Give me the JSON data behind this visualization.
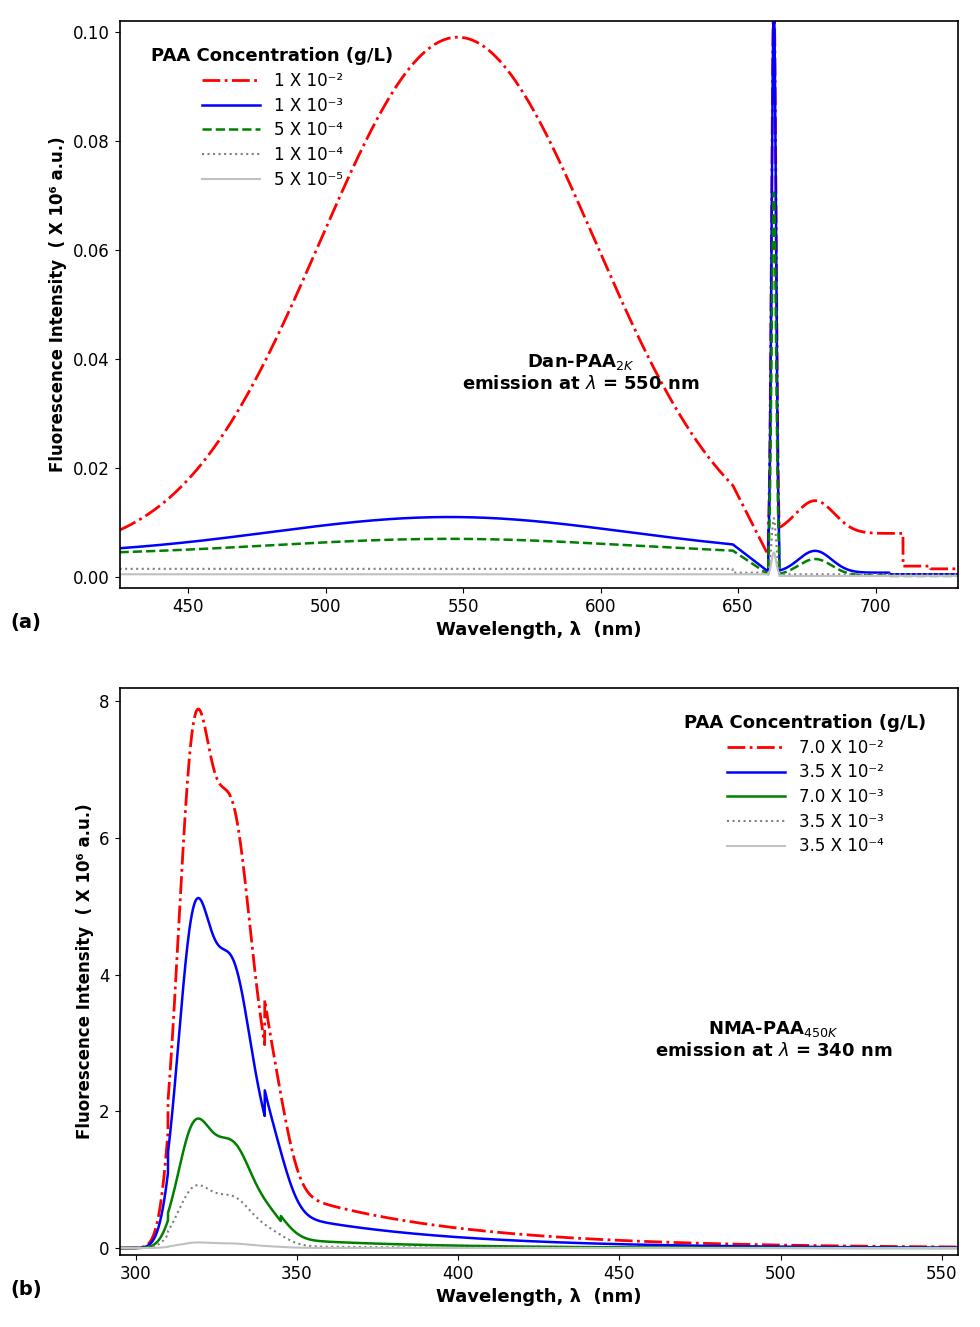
{
  "panel_a": {
    "title": "PAA Concentration (g/L)",
    "annotation_line1": "Dan-PAA",
    "annotation_sub": "2K",
    "annotation_line2": "emission at λ = 550 nm",
    "xlabel": "Wavelength, λ  (nm)",
    "ylabel": "Fluorescence Intensity  ( X 10⁶ a.u.)",
    "xlim": [
      425,
      730
    ],
    "ylim": [
      -0.002,
      0.102
    ],
    "yticks": [
      0.0,
      0.02,
      0.04,
      0.06,
      0.08,
      0.1
    ],
    "xticks": [
      450,
      500,
      550,
      600,
      650,
      700
    ],
    "legend_labels": [
      "1 X 10⁻²",
      "1 X 10⁻³",
      "5 X 10⁻⁴",
      "1 X 10⁻⁴",
      "5 X 10⁻⁵"
    ]
  },
  "panel_b": {
    "title": "PAA Concentration (g/L)",
    "annotation_line1": "NMA-PAA",
    "annotation_sub": "450K",
    "annotation_line2": "emission at λ = 340 nm",
    "xlabel": "Wavelength, λ  (nm)",
    "ylabel": "Fluorescence Intensity  ( X 10⁶ a.u.)",
    "xlim": [
      295,
      555
    ],
    "ylim": [
      -0.1,
      8.2
    ],
    "yticks": [
      0,
      2,
      4,
      6,
      8
    ],
    "xticks": [
      300,
      350,
      400,
      450,
      500,
      550
    ],
    "legend_labels": [
      "7.0 X 10⁻²",
      "3.5 X 10⁻²",
      "7.0 X 10⁻³",
      "3.5 X 10⁻³",
      "3.5 X 10⁻⁴"
    ]
  }
}
